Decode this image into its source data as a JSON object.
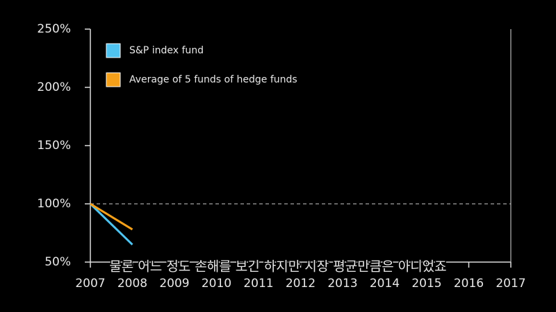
{
  "chart_data": {
    "type": "line",
    "categories": [
      "2007",
      "2008",
      "2009",
      "2010",
      "2011",
      "2012",
      "2013",
      "2014",
      "2015",
      "2016",
      "2017"
    ],
    "series": [
      {
        "name": "S&P index fund",
        "color": "#4fc3f0",
        "values": [
          100,
          65,
          null,
          null,
          null,
          null,
          null,
          null,
          null,
          null,
          null
        ]
      },
      {
        "name": "Average of 5 funds of hedge funds",
        "color": "#f5a01a",
        "values": [
          100,
          78,
          null,
          null,
          null,
          null,
          null,
          null,
          null,
          null,
          null
        ]
      }
    ],
    "ylim": [
      50,
      250
    ],
    "yticks": [
      {
        "value": 50,
        "label": "50%"
      },
      {
        "value": 100,
        "label": "100%"
      },
      {
        "value": 150,
        "label": "150%"
      },
      {
        "value": 200,
        "label": "200%"
      },
      {
        "value": 250,
        "label": "250%"
      }
    ],
    "reference_line": 100,
    "legend": "upper left"
  },
  "caption": "물론 어느 정도 손해를 보긴 하지만 시장 평균만큼은 아니었죠"
}
